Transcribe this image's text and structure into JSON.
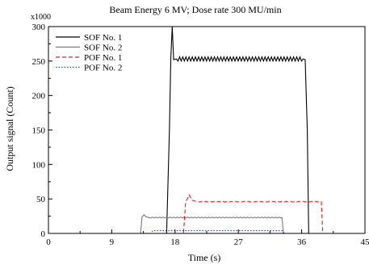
{
  "chart_data": {
    "type": "line",
    "title": "Beam Energy 6 MV; Dose rate 300 MU/min",
    "xlabel": "Time (s)",
    "ylabel": "Output signal (Count)",
    "y_multiplier_label": "x1000",
    "xlim": [
      0,
      45
    ],
    "ylim": [
      0,
      300
    ],
    "x_ticks": [
      0,
      9,
      18,
      27,
      36,
      45
    ],
    "x_tick_labels": [
      "0",
      "9",
      "18",
      "27",
      "36",
      "45"
    ],
    "y_ticks": [
      0,
      50,
      100,
      150,
      200,
      250,
      300
    ],
    "y_tick_labels": [
      "0",
      "50",
      "100",
      "150",
      "200",
      "250",
      "300"
    ],
    "legend_position": "top-left",
    "grid": false,
    "series": [
      {
        "name": "SOF No. 1",
        "color": "#000000",
        "dash": "solid",
        "x": [
          0,
          16.8,
          17.2,
          17.4,
          17.6,
          17.8,
          18.2,
          36.2,
          36.5,
          36.8,
          37.0,
          45
        ],
        "y": [
          0,
          0,
          150,
          255,
          300,
          252,
          253,
          253,
          252,
          150,
          0,
          0
        ],
        "oscillate": {
          "from": 18.2,
          "to": 36.2,
          "amplitude": 3,
          "period": 0.45
        }
      },
      {
        "name": "SOF No. 2",
        "color": "#7a7a7a",
        "dash": "solid",
        "x": [
          0,
          13.1,
          13.3,
          13.6,
          13.9,
          14.3,
          33.2,
          33.4,
          45
        ],
        "y": [
          0,
          0,
          24,
          27,
          24,
          23,
          23,
          0,
          0
        ],
        "oscillate": {
          "from": 14.3,
          "to": 33.2,
          "amplitude": 0.6,
          "period": 0.5
        }
      },
      {
        "name": "POF No. 1",
        "color": "#e02020",
        "dash": "dashed",
        "x": [
          0,
          19.2,
          19.5,
          20.0,
          20.4,
          21.2,
          38.8,
          39.0,
          45
        ],
        "y": [
          0,
          0,
          45,
          56,
          48,
          46,
          46,
          0,
          0
        ],
        "oscillate": {
          "from": 21.2,
          "to": 38.8,
          "amplitude": 0.5,
          "period": 0.6
        }
      },
      {
        "name": "POF No. 2",
        "color": "#1f3fd0",
        "dash": "dotted",
        "x": [
          0,
          14.6,
          14.8,
          33.3,
          33.5,
          45
        ],
        "y": [
          0,
          0,
          4,
          4,
          0,
          0
        ]
      }
    ]
  }
}
